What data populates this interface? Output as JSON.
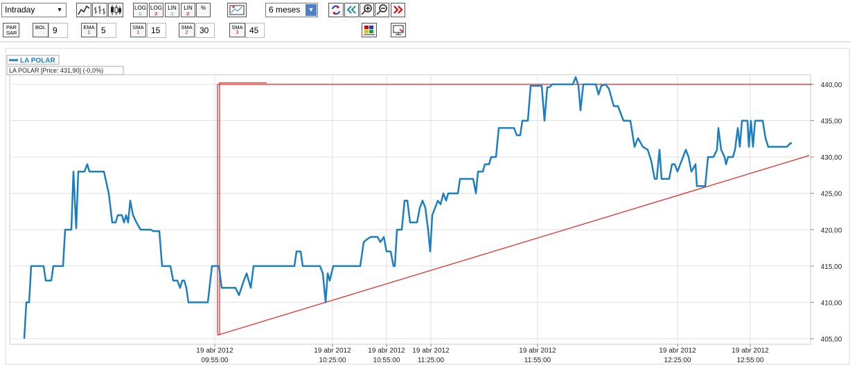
{
  "toolbar": {
    "interval": "Intraday",
    "range": "6 meses",
    "scale_buttons": [
      "LOG",
      "LOG",
      "LIN",
      "LIN",
      "%"
    ],
    "indicators": [
      {
        "label": "PAR SAR"
      },
      {
        "label": "BOL",
        "value": 9
      },
      {
        "label": "EMA",
        "sub": "1",
        "value": 5
      },
      {
        "label": "SMA",
        "sub": "1",
        "value": 15
      },
      {
        "label": "SMA",
        "sub": "2",
        "value": 30
      },
      {
        "label": "SMA",
        "sub": "3",
        "value": 45
      }
    ]
  },
  "chart_data": {
    "type": "line",
    "info": "LA POLAR [Price: 431,90] (-0,0%)",
    "xlim": [
      0,
      1156
    ],
    "ylim": [
      404.24,
      441.33
    ],
    "grid": true,
    "xticks": [
      {
        "value": 296,
        "label": "19 abr 2012\n09:55:00"
      },
      {
        "value": 466,
        "label": "19 abr 2012\n10:25:00"
      },
      {
        "value": 544,
        "label": "19 abr 2012\n10:55:00"
      },
      {
        "value": 608,
        "label": "19 abr 2012\n11:25:00"
      },
      {
        "value": 762,
        "label": "19 abr 2012\n11:55:00"
      },
      {
        "value": 964,
        "label": "19 abr 2012\n12:25:00"
      },
      {
        "value": 1069,
        "label": "19 abr 2012\n12:55:00"
      }
    ],
    "yticks": [
      {
        "value": 405,
        "label": "405,00"
      },
      {
        "value": 410,
        "label": "410,00"
      },
      {
        "value": 415,
        "label": "415,00"
      },
      {
        "value": 420,
        "label": "420,00"
      },
      {
        "value": 425,
        "label": "425,00"
      },
      {
        "value": 430,
        "label": "430,00"
      },
      {
        "value": 435,
        "label": "435,00"
      },
      {
        "value": 440,
        "label": "440,00"
      }
    ],
    "series": [
      {
        "name": "LA POLAR",
        "color": "#1a7fc1",
        "x": [
          21,
          24,
          28,
          31,
          49,
          52,
          60,
          63,
          77,
          80,
          89,
          92,
          96,
          99,
          108,
          112,
          115,
          136,
          143,
          148,
          153,
          156,
          162,
          165,
          168,
          171,
          174,
          178,
          183,
          189,
          204,
          207,
          216,
          220,
          232,
          236,
          242,
          246,
          249,
          252,
          255,
          258,
          286,
          292,
          302,
          306,
          326,
          331,
          338,
          342,
          348,
          352,
          411,
          414,
          420,
          423,
          448,
          452,
          456,
          459,
          462,
          467,
          506,
          511,
          516,
          521,
          531,
          535,
          540,
          544,
          550,
          554,
          556,
          559,
          566,
          570,
          574,
          578,
          588,
          592,
          596,
          600,
          604,
          607,
          610,
          614,
          618,
          622,
          626,
          630,
          633,
          647,
          650,
          669,
          673,
          676,
          683,
          686,
          692,
          695,
          702,
          706,
          728,
          732,
          737,
          740,
          748,
          752,
          768,
          772,
          776,
          779,
          783,
          813,
          817,
          821,
          824,
          828,
          846,
          850,
          854,
          860,
          865,
          872,
          878,
          886,
          896,
          902,
          907,
          914,
          921,
          926,
          931,
          934,
          938,
          941,
          952,
          956,
          960,
          964,
          968,
          972,
          976,
          980,
          984,
          990,
          992,
          1004,
          1008,
          1011,
          1016,
          1021,
          1023,
          1027,
          1032,
          1034,
          1037,
          1044,
          1047,
          1051,
          1054,
          1057,
          1065,
          1067,
          1070,
          1073,
          1076,
          1087,
          1091,
          1095,
          1122,
          1127,
          1129
        ],
        "values": [
          405,
          410,
          410,
          415,
          415,
          413,
          413,
          415,
          415,
          420,
          420,
          428,
          420.2,
          428,
          428,
          429,
          428,
          428,
          425,
          421,
          421,
          422,
          422,
          421,
          422,
          421,
          424,
          422,
          421,
          420,
          420,
          419.8,
          419.8,
          415,
          415,
          413,
          413,
          412,
          413,
          413,
          412,
          410,
          410,
          415,
          415,
          412,
          412,
          411,
          413,
          414,
          412,
          415,
          415,
          417,
          417,
          415,
          415,
          414,
          410,
          414,
          413,
          415,
          415,
          418.3,
          418.7,
          419,
          419,
          418.3,
          419,
          417,
          417,
          415,
          415,
          420,
          420,
          424,
          424,
          421,
          421,
          423,
          424,
          423,
          420,
          417,
          422,
          423,
          424,
          423.5,
          425,
          424,
          425,
          425,
          427,
          427,
          425,
          428,
          428,
          429,
          429,
          430,
          430,
          434,
          434,
          433,
          433,
          435,
          435,
          439.8,
          439.8,
          435,
          439.6,
          439.6,
          440,
          440,
          441,
          439.8,
          436.4,
          440,
          440,
          438.6,
          439.8,
          440,
          439.4,
          437,
          437,
          435,
          435,
          431.4,
          432.6,
          431.4,
          431,
          429.5,
          427,
          427,
          431,
          427,
          427,
          429,
          429,
          428,
          429,
          430,
          431,
          430,
          428,
          429,
          426,
          426,
          430,
          430,
          430,
          431,
          434,
          431,
          430,
          429,
          430,
          430,
          431,
          434,
          431.4,
          435,
          435,
          431.4,
          435,
          431.4,
          435,
          435,
          432.6,
          431.4,
          431.4,
          431.9,
          431.9
        ]
      }
    ],
    "trendlines": [
      {
        "color": "#e8201c",
        "x": [
          300,
          1154
        ],
        "values": [
          405.5,
          430.2
        ]
      },
      {
        "color": "#e8201c",
        "x": [
          300,
          300,
          1158
        ],
        "values": [
          405.5,
          440,
          440
        ]
      },
      {
        "color": "#e8201c",
        "x": [
          303,
          303,
          371
        ],
        "values": [
          405.5,
          440.2,
          440.2
        ]
      }
    ]
  }
}
